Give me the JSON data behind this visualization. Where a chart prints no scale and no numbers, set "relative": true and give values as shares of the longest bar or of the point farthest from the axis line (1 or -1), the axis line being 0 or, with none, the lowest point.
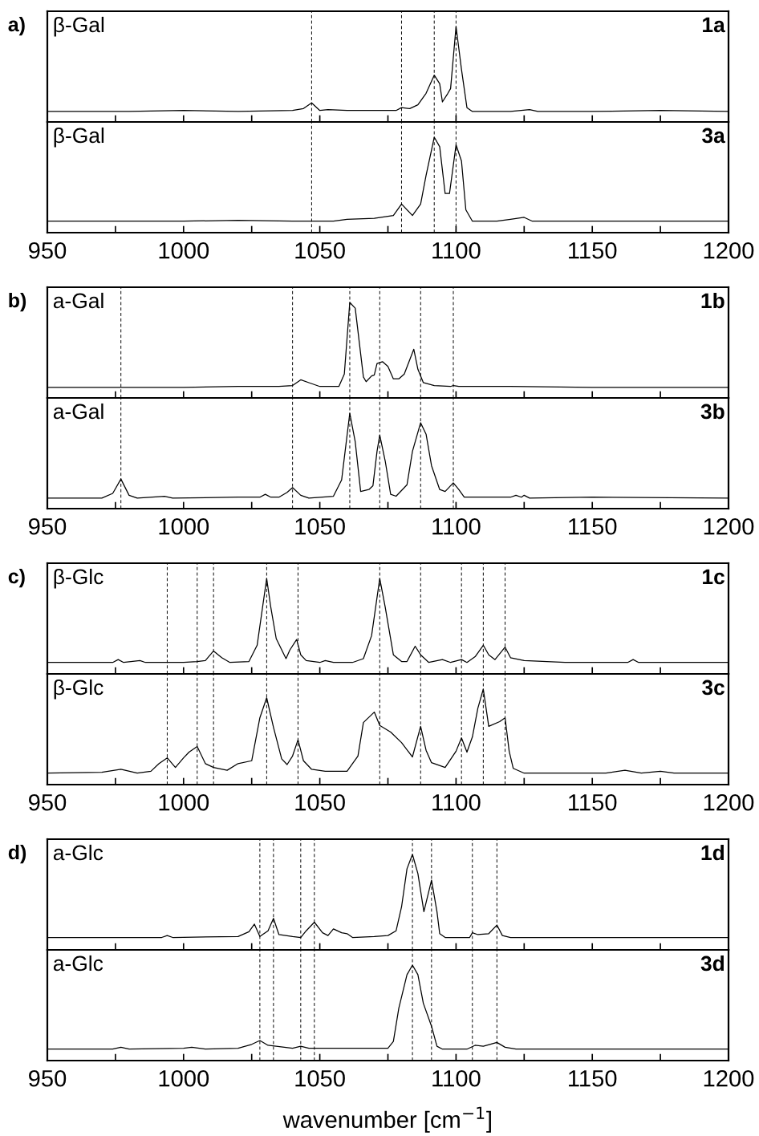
{
  "chart_data": [
    {
      "type": "line",
      "relative": true,
      "tick_labels": false,
      "xlim": [
        950,
        1200
      ],
      "xticks": [
        950,
        {
          "value": 975,
          "label": null
        },
        1000,
        {
          "value": 1025,
          "label": null
        },
        1050,
        {
          "value": 1075,
          "label": null
        },
        1100,
        {
          "value": 1125,
          "label": null
        },
        1150,
        {
          "value": 1175,
          "label": null
        },
        1200
      ],
      "annotations": [
        "β-Gal",
        "1a",
        "a)"
      ],
      "ref_lines": [
        {
          "axis": "x",
          "value": 1047,
          "line_style": "dashed"
        },
        {
          "axis": "x",
          "value": 1080,
          "line_style": "dashed"
        },
        {
          "axis": "x",
          "value": 1092,
          "line_style": "dashed"
        },
        {
          "axis": "x",
          "value": 1100,
          "line_style": "dashed"
        }
      ],
      "series": [
        {
          "color": "#000000",
          "x": [
            950,
            980,
            1000,
            1020,
            1040,
            1044,
            1047,
            1050,
            1053,
            1060,
            1070,
            1078,
            1080,
            1083,
            1086,
            1089,
            1092,
            1094,
            1095,
            1097,
            1098,
            1100,
            1102,
            1104,
            1106,
            1120,
            1127,
            1130,
            1150,
            1175,
            1200
          ],
          "values": [
            0.11,
            0.11,
            0.12,
            0.11,
            0.12,
            0.14,
            0.2,
            0.12,
            0.13,
            0.12,
            0.12,
            0.12,
            0.15,
            0.14,
            0.18,
            0.3,
            0.49,
            0.4,
            0.21,
            0.3,
            0.35,
            1.0,
            0.55,
            0.15,
            0.11,
            0.11,
            0.13,
            0.11,
            0.11,
            0.12,
            0.11
          ]
        }
      ]
    },
    {
      "type": "line",
      "relative": true,
      "tick_labels": "x",
      "xlim": [
        950,
        1200
      ],
      "xticks": [
        950,
        {
          "value": 975,
          "label": null
        },
        1000,
        {
          "value": 1025,
          "label": null
        },
        1050,
        {
          "value": 1075,
          "label": null
        },
        1100,
        {
          "value": 1125,
          "label": null
        },
        1150,
        {
          "value": 1175,
          "label": null
        },
        1200
      ],
      "annotations": [
        "β-Gal",
        "3a"
      ],
      "ref_lines": [
        {
          "axis": "x",
          "value": 1047,
          "line_style": "dashed"
        },
        {
          "axis": "x",
          "value": 1080,
          "line_style": "dashed"
        },
        {
          "axis": "x",
          "value": 1092,
          "line_style": "dashed"
        },
        {
          "axis": "x",
          "value": 1100,
          "line_style": "dashed"
        }
      ],
      "series": [
        {
          "color": "#000000",
          "x": [
            950,
            1000,
            1020,
            1040,
            1055,
            1060,
            1070,
            1077,
            1080,
            1084,
            1087,
            1089,
            1092,
            1094,
            1096,
            1097.6,
            1100,
            1102,
            1103.6,
            1106,
            1115,
            1120,
            1125,
            1128,
            1150,
            1200
          ],
          "values": [
            0.12,
            0.12,
            0.13,
            0.12,
            0.12,
            0.14,
            0.15,
            0.18,
            0.3,
            0.18,
            0.3,
            0.6,
            1.0,
            0.9,
            0.41,
            0.41,
            0.92,
            0.75,
            0.24,
            0.12,
            0.12,
            0.14,
            0.16,
            0.12,
            0.12,
            0.12
          ]
        }
      ]
    },
    {
      "type": "line",
      "relative": true,
      "tick_labels": false,
      "xlim": [
        950,
        1200
      ],
      "xticks": [
        950,
        {
          "value": 975,
          "label": null
        },
        1000,
        {
          "value": 1025,
          "label": null
        },
        1050,
        {
          "value": 1075,
          "label": null
        },
        1100,
        {
          "value": 1125,
          "label": null
        },
        1150,
        {
          "value": 1175,
          "label": null
        },
        1200
      ],
      "annotations": [
        "a-Gal",
        "1b",
        "b)"
      ],
      "ref_lines": [
        {
          "axis": "x",
          "value": 977,
          "line_style": "dashed"
        },
        {
          "axis": "x",
          "value": 1040,
          "line_style": "dashed"
        },
        {
          "axis": "x",
          "value": 1061,
          "line_style": "dashed"
        },
        {
          "axis": "x",
          "value": 1072,
          "line_style": "dashed"
        },
        {
          "axis": "x",
          "value": 1087,
          "line_style": "dashed"
        },
        {
          "axis": "x",
          "value": 1099,
          "line_style": "dashed"
        }
      ],
      "series": [
        {
          "color": "#000000",
          "x": [
            950,
            980,
            1000,
            1020,
            1035,
            1040,
            1043,
            1046,
            1050,
            1057,
            1059,
            1061,
            1063,
            1066,
            1067,
            1069,
            1070,
            1071,
            1073,
            1075,
            1077,
            1079,
            1081,
            1084.5,
            1086,
            1088,
            1092,
            1098,
            1099,
            1101,
            1120,
            1150,
            1200
          ],
          "values": [
            0.11,
            0.11,
            0.11,
            0.12,
            0.12,
            0.13,
            0.19,
            0.16,
            0.12,
            0.12,
            0.25,
            1.0,
            0.94,
            0.22,
            0.17,
            0.23,
            0.24,
            0.36,
            0.38,
            0.33,
            0.2,
            0.2,
            0.25,
            0.51,
            0.3,
            0.16,
            0.13,
            0.12,
            0.13,
            0.12,
            0.12,
            0.11,
            0.11
          ]
        }
      ]
    },
    {
      "type": "line",
      "relative": true,
      "tick_labels": "x",
      "xlim": [
        950,
        1200
      ],
      "xticks": [
        950,
        {
          "value": 975,
          "label": null
        },
        1000,
        {
          "value": 1025,
          "label": null
        },
        1050,
        {
          "value": 1075,
          "label": null
        },
        1100,
        {
          "value": 1125,
          "label": null
        },
        1150,
        {
          "value": 1175,
          "label": null
        },
        1200
      ],
      "annotations": [
        "a-Gal",
        "3b"
      ],
      "ref_lines": [
        {
          "axis": "x",
          "value": 977,
          "line_style": "dashed"
        },
        {
          "axis": "x",
          "value": 1040,
          "line_style": "dashed"
        },
        {
          "axis": "x",
          "value": 1061,
          "line_style": "dashed"
        },
        {
          "axis": "x",
          "value": 1072,
          "line_style": "dashed"
        },
        {
          "axis": "x",
          "value": 1087,
          "line_style": "dashed"
        },
        {
          "axis": "x",
          "value": 1099,
          "line_style": "dashed"
        }
      ],
      "series": [
        {
          "color": "#000000",
          "x": [
            950,
            970,
            974,
            977,
            980,
            983,
            993,
            996,
            1020,
            1028,
            1030,
            1032,
            1035,
            1038,
            1040,
            1043,
            1046,
            1055,
            1058,
            1061,
            1063,
            1065,
            1068,
            1069.5,
            1071,
            1072,
            1074,
            1076,
            1078,
            1082,
            1084,
            1087,
            1089,
            1091,
            1094,
            1096,
            1099,
            1101,
            1103,
            1120,
            1122,
            1124,
            1125,
            1127,
            1150,
            1200
          ],
          "values": [
            0.11,
            0.11,
            0.16,
            0.31,
            0.14,
            0.11,
            0.13,
            0.11,
            0.12,
            0.12,
            0.15,
            0.12,
            0.12,
            0.17,
            0.22,
            0.14,
            0.11,
            0.13,
            0.3,
            1.0,
            0.7,
            0.18,
            0.2,
            0.24,
            0.6,
            0.77,
            0.5,
            0.15,
            0.13,
            0.25,
            0.6,
            0.9,
            0.78,
            0.45,
            0.2,
            0.18,
            0.27,
            0.2,
            0.12,
            0.12,
            0.14,
            0.12,
            0.14,
            0.11,
            0.12,
            0.11
          ]
        }
      ]
    },
    {
      "type": "line",
      "relative": true,
      "tick_labels": false,
      "xlim": [
        950,
        1200
      ],
      "xticks": [
        950,
        {
          "value": 975,
          "label": null
        },
        1000,
        {
          "value": 1025,
          "label": null
        },
        1050,
        {
          "value": 1075,
          "label": null
        },
        1100,
        {
          "value": 1125,
          "label": null
        },
        1150,
        {
          "value": 1175,
          "label": null
        },
        1200
      ],
      "annotations": [
        "β-Glc",
        "1c",
        "c)"
      ],
      "ref_lines": [
        {
          "axis": "x",
          "value": 994,
          "line_style": "dashed"
        },
        {
          "axis": "x",
          "value": 1005,
          "line_style": "dashed"
        },
        {
          "axis": "x",
          "value": 1011,
          "line_style": "dashed"
        },
        {
          "axis": "x",
          "value": 1030.5,
          "line_style": "dashed"
        },
        {
          "axis": "x",
          "value": 1042,
          "line_style": "dashed"
        },
        {
          "axis": "x",
          "value": 1072,
          "line_style": "dashed"
        },
        {
          "axis": "x",
          "value": 1087,
          "line_style": "dashed"
        },
        {
          "axis": "x",
          "value": 1102,
          "line_style": "dashed"
        },
        {
          "axis": "x",
          "value": 1110,
          "line_style": "dashed"
        },
        {
          "axis": "x",
          "value": 1118,
          "line_style": "dashed"
        }
      ],
      "series": [
        {
          "color": "#000000",
          "x": [
            950,
            974,
            976,
            978,
            984,
            986,
            1000,
            1005,
            1008,
            1011,
            1014,
            1017,
            1024,
            1027,
            1030.5,
            1032,
            1034,
            1037.6,
            1039,
            1041.5,
            1043,
            1045,
            1050,
            1052,
            1055,
            1062,
            1066,
            1069,
            1072,
            1074,
            1077,
            1080,
            1082,
            1085,
            1087,
            1090,
            1095,
            1098,
            1102,
            1104,
            1107,
            1110,
            1112,
            1114.3,
            1118,
            1120,
            1125,
            1140,
            1163,
            1165,
            1167,
            1200
          ],
          "values": [
            0.12,
            0.12,
            0.15,
            0.12,
            0.14,
            0.12,
            0.12,
            0.13,
            0.14,
            0.24,
            0.17,
            0.12,
            0.13,
            0.3,
            1.0,
            0.7,
            0.37,
            0.16,
            0.25,
            0.36,
            0.2,
            0.14,
            0.12,
            0.14,
            0.12,
            0.12,
            0.16,
            0.4,
            1.0,
            0.7,
            0.2,
            0.13,
            0.13,
            0.29,
            0.2,
            0.12,
            0.15,
            0.12,
            0.15,
            0.12,
            0.18,
            0.3,
            0.2,
            0.15,
            0.28,
            0.17,
            0.14,
            0.12,
            0.12,
            0.15,
            0.12,
            0.12
          ]
        }
      ]
    },
    {
      "type": "line",
      "relative": true,
      "tick_labels": "x",
      "xlim": [
        950,
        1200
      ],
      "xticks": [
        950,
        {
          "value": 975,
          "label": null
        },
        1000,
        {
          "value": 1025,
          "label": null
        },
        1050,
        {
          "value": 1075,
          "label": null
        },
        1100,
        {
          "value": 1125,
          "label": null
        },
        1150,
        {
          "value": 1175,
          "label": null
        },
        1200
      ],
      "annotations": [
        "β-Glc",
        "3c"
      ],
      "ref_lines": [
        {
          "axis": "x",
          "value": 994,
          "line_style": "dashed"
        },
        {
          "axis": "x",
          "value": 1005,
          "line_style": "dashed"
        },
        {
          "axis": "x",
          "value": 1011,
          "line_style": "dashed"
        },
        {
          "axis": "x",
          "value": 1030.5,
          "line_style": "dashed"
        },
        {
          "axis": "x",
          "value": 1042,
          "line_style": "dashed"
        },
        {
          "axis": "x",
          "value": 1072,
          "line_style": "dashed"
        },
        {
          "axis": "x",
          "value": 1087,
          "line_style": "dashed"
        },
        {
          "axis": "x",
          "value": 1102,
          "line_style": "dashed"
        },
        {
          "axis": "x",
          "value": 1110,
          "line_style": "dashed"
        },
        {
          "axis": "x",
          "value": 1118,
          "line_style": "dashed"
        }
      ],
      "series": [
        {
          "color": "#000000",
          "x": [
            950,
            970,
            977,
            983,
            988,
            991,
            994,
            997,
            1000,
            1002,
            1005,
            1008,
            1011,
            1016,
            1020,
            1025,
            1028,
            1030.5,
            1033,
            1036,
            1038,
            1040,
            1042,
            1044,
            1047,
            1052,
            1060,
            1064,
            1066,
            1070,
            1072,
            1076,
            1080,
            1084,
            1087,
            1089,
            1091,
            1096,
            1100,
            1102,
            1104,
            1106,
            1108,
            1110,
            1112,
            1116,
            1118,
            1119.5,
            1121,
            1125,
            1155,
            1162,
            1168,
            1175,
            1180,
            1200
          ],
          "values": [
            0.12,
            0.13,
            0.16,
            0.12,
            0.14,
            0.22,
            0.28,
            0.18,
            0.28,
            0.34,
            0.4,
            0.22,
            0.18,
            0.15,
            0.22,
            0.25,
            0.7,
            0.91,
            0.6,
            0.27,
            0.21,
            0.3,
            0.47,
            0.25,
            0.16,
            0.14,
            0.14,
            0.3,
            0.65,
            0.76,
            0.62,
            0.55,
            0.44,
            0.29,
            0.61,
            0.36,
            0.23,
            0.18,
            0.35,
            0.49,
            0.34,
            0.5,
            0.8,
            1.0,
            0.61,
            0.66,
            0.7,
            0.35,
            0.17,
            0.12,
            0.12,
            0.15,
            0.12,
            0.14,
            0.12,
            0.12
          ]
        }
      ]
    },
    {
      "type": "line",
      "relative": true,
      "tick_labels": false,
      "xlim": [
        950,
        1200
      ],
      "xticks": [
        950,
        {
          "value": 975,
          "label": null
        },
        1000,
        {
          "value": 1025,
          "label": null
        },
        1050,
        {
          "value": 1075,
          "label": null
        },
        1100,
        {
          "value": 1125,
          "label": null
        },
        1150,
        {
          "value": 1175,
          "label": null
        },
        1200
      ],
      "annotations": [
        "a-Glc",
        "1d",
        "d)"
      ],
      "ref_lines": [
        {
          "axis": "x",
          "value": 1028,
          "line_style": "dashed"
        },
        {
          "axis": "x",
          "value": 1033,
          "line_style": "dashed"
        },
        {
          "axis": "x",
          "value": 1043,
          "line_style": "dashed"
        },
        {
          "axis": "x",
          "value": 1048,
          "line_style": "dashed"
        },
        {
          "axis": "x",
          "value": 1084,
          "line_style": "dashed"
        },
        {
          "axis": "x",
          "value": 1091,
          "line_style": "dashed"
        },
        {
          "axis": "x",
          "value": 1106,
          "line_style": "dashed"
        },
        {
          "axis": "x",
          "value": 1115,
          "line_style": "dashed"
        }
      ],
      "series": [
        {
          "color": "#000000",
          "x": [
            950,
            992,
            994,
            996,
            1020,
            1024,
            1026,
            1028,
            1031,
            1033,
            1035,
            1040,
            1043,
            1045,
            1048,
            1051,
            1053,
            1055,
            1058,
            1060,
            1062,
            1070,
            1075,
            1078,
            1080,
            1082,
            1084,
            1086,
            1088.2,
            1091,
            1093,
            1094,
            1096,
            1105,
            1106,
            1108,
            1112,
            1115,
            1117,
            1120,
            1200
          ],
          "values": [
            0.13,
            0.13,
            0.15,
            0.13,
            0.14,
            0.19,
            0.27,
            0.14,
            0.2,
            0.33,
            0.16,
            0.14,
            0.13,
            0.2,
            0.29,
            0.18,
            0.15,
            0.22,
            0.18,
            0.17,
            0.13,
            0.14,
            0.15,
            0.2,
            0.45,
            0.85,
            1.0,
            0.8,
            0.4,
            0.73,
            0.4,
            0.17,
            0.13,
            0.13,
            0.18,
            0.16,
            0.17,
            0.26,
            0.15,
            0.13,
            0.13
          ]
        }
      ]
    },
    {
      "type": "line",
      "relative": true,
      "tick_labels": "x",
      "xlim": [
        950,
        1200
      ],
      "xticks": [
        950,
        {
          "value": 975,
          "label": null
        },
        1000,
        {
          "value": 1025,
          "label": null
        },
        1050,
        {
          "value": 1075,
          "label": null
        },
        1100,
        {
          "value": 1125,
          "label": null
        },
        1150,
        {
          "value": 1175,
          "label": null
        },
        1200
      ],
      "annotations": [
        "a-Glc",
        "3d"
      ],
      "xlabel": "wavenumber [cm$^{−1}$]",
      "ref_lines": [
        {
          "axis": "x",
          "value": 1028,
          "line_style": "dashed"
        },
        {
          "axis": "x",
          "value": 1033,
          "line_style": "dashed"
        },
        {
          "axis": "x",
          "value": 1043,
          "line_style": "dashed"
        },
        {
          "axis": "x",
          "value": 1048,
          "line_style": "dashed"
        },
        {
          "axis": "x",
          "value": 1084,
          "line_style": "dashed"
        },
        {
          "axis": "x",
          "value": 1091,
          "line_style": "dashed"
        },
        {
          "axis": "x",
          "value": 1106,
          "line_style": "dashed"
        },
        {
          "axis": "x",
          "value": 1115,
          "line_style": "dashed"
        }
      ],
      "series": [
        {
          "color": "#000000",
          "x": [
            950,
            974,
            977,
            980,
            1000,
            1003,
            1008,
            1020,
            1025,
            1028,
            1031,
            1040,
            1043,
            1046,
            1060,
            1075,
            1077,
            1079,
            1082,
            1084,
            1086,
            1088,
            1091,
            1093,
            1095,
            1104,
            1107,
            1110,
            1115,
            1118,
            1122,
            1200
          ],
          "values": [
            0.12,
            0.12,
            0.14,
            0.12,
            0.13,
            0.14,
            0.12,
            0.13,
            0.17,
            0.21,
            0.16,
            0.13,
            0.15,
            0.13,
            0.13,
            0.13,
            0.2,
            0.55,
            0.9,
            1.0,
            0.9,
            0.6,
            0.36,
            0.15,
            0.12,
            0.12,
            0.16,
            0.15,
            0.19,
            0.14,
            0.12,
            0.12
          ]
        }
      ]
    }
  ]
}
